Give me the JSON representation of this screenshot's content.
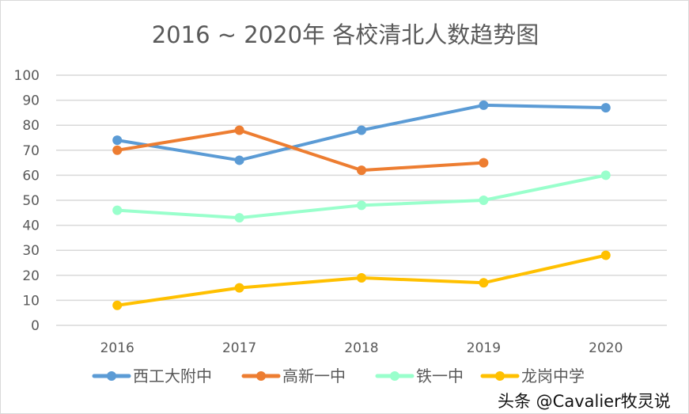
{
  "chart_data": {
    "type": "line",
    "title": "2016 ~ 2020年 各校清北人数趋势图",
    "categories": [
      "2016",
      "2017",
      "2018",
      "2019",
      "2020"
    ],
    "ylim": [
      0,
      100
    ],
    "yticks": [
      "0",
      "10",
      "20",
      "30",
      "40",
      "50",
      "60",
      "70",
      "80",
      "90",
      "100"
    ],
    "grid": true,
    "legend_position": "bottom",
    "series": [
      {
        "name": "西工大附中",
        "color": "#5b9bd5",
        "values": [
          74,
          66,
          78,
          88,
          87
        ]
      },
      {
        "name": "高新一中",
        "color": "#ed7d31",
        "values": [
          70,
          78,
          62,
          65,
          null
        ]
      },
      {
        "name": "铁一中",
        "color": "#99ffcc",
        "values": [
          46,
          43,
          48,
          50,
          60
        ]
      },
      {
        "name": "龙岗中学",
        "color": "#ffc000",
        "values": [
          8,
          15,
          19,
          17,
          28
        ]
      }
    ]
  },
  "watermark": "头条 @Cavalier牧灵说"
}
